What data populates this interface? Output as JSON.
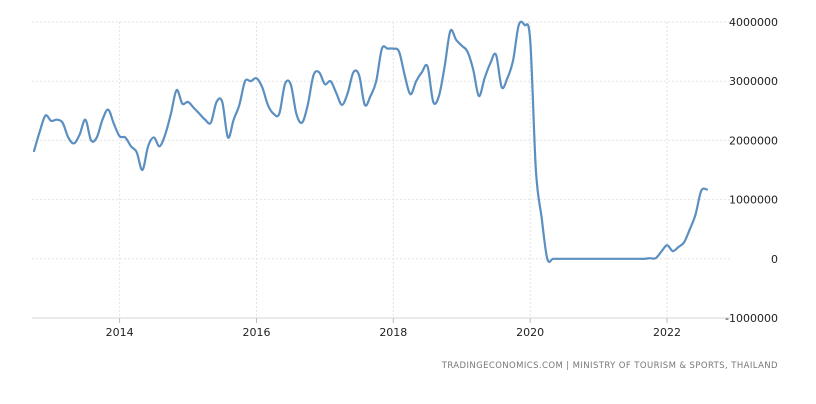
{
  "chart_data": {
    "type": "line",
    "title": "",
    "xlabel": "",
    "ylabel": "",
    "x_ticks": [
      "2014",
      "2016",
      "2018",
      "2020",
      "2022"
    ],
    "y_ticks": [
      "4000000",
      "3000000",
      "2000000",
      "1000000",
      "0",
      "-1000000"
    ],
    "ylim": [
      -1000000,
      4000000
    ],
    "grid": true,
    "legend": "none",
    "colors": {
      "line": "#5b8fc0",
      "grid": "#e3e3e3"
    },
    "series": [
      {
        "values": [
          [
            "2012-10",
            1820000
          ],
          [
            "2012-11",
            2150000
          ],
          [
            "2012-12",
            2420000
          ],
          [
            "2013-01",
            2330000
          ],
          [
            "2013-02",
            2350000
          ],
          [
            "2013-03",
            2300000
          ],
          [
            "2013-04",
            2050000
          ],
          [
            "2013-05",
            1950000
          ],
          [
            "2013-06",
            2100000
          ],
          [
            "2013-07",
            2350000
          ],
          [
            "2013-08",
            2000000
          ],
          [
            "2013-09",
            2050000
          ],
          [
            "2013-10",
            2350000
          ],
          [
            "2013-11",
            2520000
          ],
          [
            "2013-12",
            2280000
          ],
          [
            "2014-01",
            2070000
          ],
          [
            "2014-02",
            2050000
          ],
          [
            "2014-03",
            1900000
          ],
          [
            "2014-04",
            1800000
          ],
          [
            "2014-05",
            1500000
          ],
          [
            "2014-06",
            1900000
          ],
          [
            "2014-07",
            2050000
          ],
          [
            "2014-08",
            1900000
          ],
          [
            "2014-09",
            2100000
          ],
          [
            "2014-10",
            2450000
          ],
          [
            "2014-11",
            2850000
          ],
          [
            "2014-12",
            2620000
          ],
          [
            "2015-01",
            2650000
          ],
          [
            "2015-02",
            2550000
          ],
          [
            "2015-03",
            2450000
          ],
          [
            "2015-04",
            2350000
          ],
          [
            "2015-05",
            2300000
          ],
          [
            "2015-06",
            2650000
          ],
          [
            "2015-07",
            2650000
          ],
          [
            "2015-08",
            2050000
          ],
          [
            "2015-09",
            2350000
          ],
          [
            "2015-10",
            2600000
          ],
          [
            "2015-11",
            3000000
          ],
          [
            "2015-12",
            3000000
          ],
          [
            "2016-01",
            3050000
          ],
          [
            "2016-02",
            2900000
          ],
          [
            "2016-03",
            2600000
          ],
          [
            "2016-04",
            2450000
          ],
          [
            "2016-05",
            2450000
          ],
          [
            "2016-06",
            2950000
          ],
          [
            "2016-07",
            2950000
          ],
          [
            "2016-08",
            2450000
          ],
          [
            "2016-09",
            2300000
          ],
          [
            "2016-10",
            2600000
          ],
          [
            "2016-11",
            3100000
          ],
          [
            "2016-12",
            3150000
          ],
          [
            "2017-01",
            2950000
          ],
          [
            "2017-02",
            3000000
          ],
          [
            "2017-03",
            2800000
          ],
          [
            "2017-04",
            2600000
          ],
          [
            "2017-05",
            2800000
          ],
          [
            "2017-06",
            3150000
          ],
          [
            "2017-07",
            3100000
          ],
          [
            "2017-08",
            2600000
          ],
          [
            "2017-09",
            2750000
          ],
          [
            "2017-10",
            3000000
          ],
          [
            "2017-11",
            3550000
          ],
          [
            "2017-12",
            3550000
          ],
          [
            "2018-01",
            3550000
          ],
          [
            "2018-02",
            3500000
          ],
          [
            "2018-03",
            3100000
          ],
          [
            "2018-04",
            2780000
          ],
          [
            "2018-05",
            3000000
          ],
          [
            "2018-06",
            3150000
          ],
          [
            "2018-07",
            3250000
          ],
          [
            "2018-08",
            2650000
          ],
          [
            "2018-09",
            2750000
          ],
          [
            "2018-10",
            3250000
          ],
          [
            "2018-11",
            3850000
          ],
          [
            "2018-12",
            3700000
          ],
          [
            "2019-01",
            3600000
          ],
          [
            "2019-02",
            3500000
          ],
          [
            "2019-03",
            3200000
          ],
          [
            "2019-04",
            2750000
          ],
          [
            "2019-05",
            3050000
          ],
          [
            "2019-06",
            3300000
          ],
          [
            "2019-07",
            3450000
          ],
          [
            "2019-08",
            2900000
          ],
          [
            "2019-09",
            3050000
          ],
          [
            "2019-10",
            3350000
          ],
          [
            "2019-11",
            3950000
          ],
          [
            "2019-12",
            3950000
          ],
          [
            "2020-01",
            3700000
          ],
          [
            "2020-02",
            1500000
          ],
          [
            "2020-03",
            700000
          ],
          [
            "2020-04",
            0
          ],
          [
            "2020-05",
            0
          ],
          [
            "2020-06",
            0
          ],
          [
            "2020-07",
            0
          ],
          [
            "2020-08",
            0
          ],
          [
            "2020-09",
            0
          ],
          [
            "2020-10",
            0
          ],
          [
            "2020-11",
            0
          ],
          [
            "2020-12",
            0
          ],
          [
            "2021-01",
            0
          ],
          [
            "2021-02",
            0
          ],
          [
            "2021-03",
            0
          ],
          [
            "2021-04",
            0
          ],
          [
            "2021-05",
            0
          ],
          [
            "2021-06",
            0
          ],
          [
            "2021-07",
            0
          ],
          [
            "2021-08",
            0
          ],
          [
            "2021-09",
            0
          ],
          [
            "2021-10",
            10000
          ],
          [
            "2021-11",
            10000
          ],
          [
            "2021-12",
            120000
          ],
          [
            "2022-01",
            230000
          ],
          [
            "2022-02",
            130000
          ],
          [
            "2022-03",
            200000
          ],
          [
            "2022-04",
            280000
          ],
          [
            "2022-05",
            500000
          ],
          [
            "2022-06",
            750000
          ],
          [
            "2022-07",
            1150000
          ],
          [
            "2022-08",
            1170000
          ]
        ]
      }
    ]
  },
  "source_text": "TRADINGECONOMICS.COM  |  MINISTRY OF TOURISM & SPORTS, THAILAND"
}
